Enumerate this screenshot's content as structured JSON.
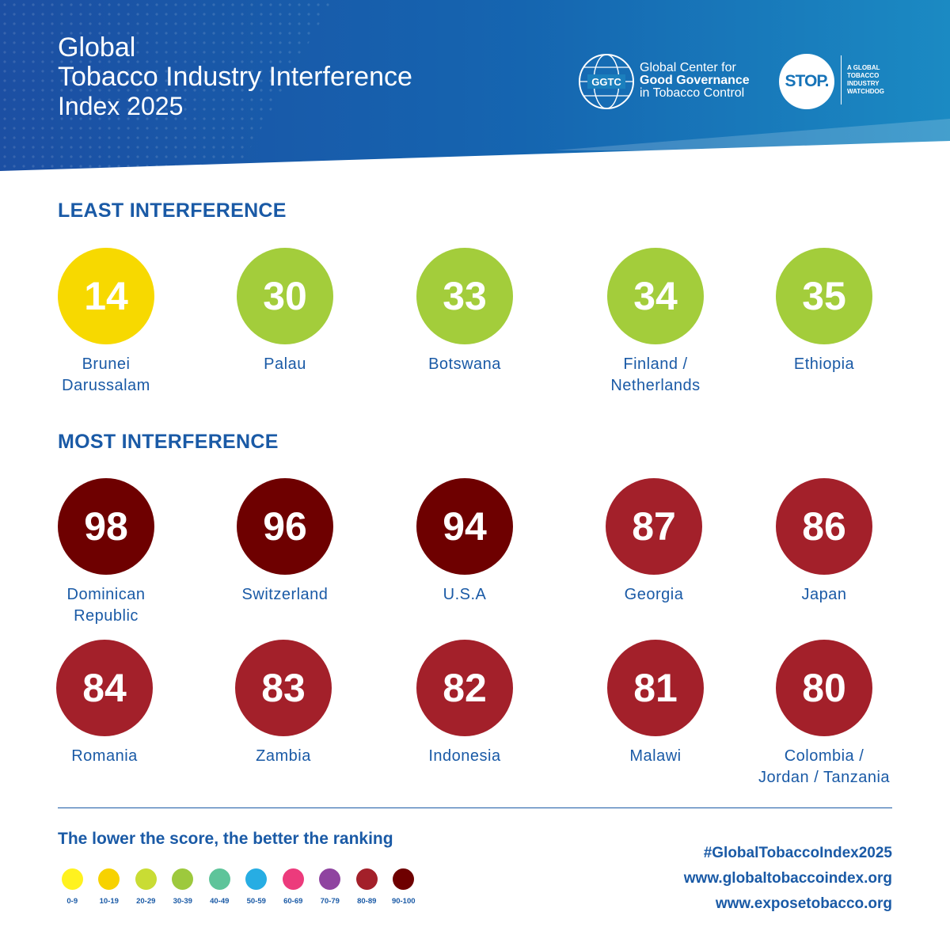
{
  "header": {
    "title_line1": "Global",
    "title_line2": "Tobacco Industry Interference",
    "title_line3": "Index 2025",
    "ggtc_abbr": "GGTC",
    "ggtc_line1": "Global Center for",
    "ggtc_line2": "Good Governance",
    "ggtc_line3": "in Tobacco Control",
    "stop_logo": "STOP.",
    "stop_tag1": "A GLOBAL",
    "stop_tag2": "TOBACCO",
    "stop_tag3": "INDUSTRY",
    "stop_tag4": "WATCHDOG"
  },
  "least": {
    "title": "LEAST INTERFERENCE",
    "items": [
      {
        "score": "14",
        "country": "Brunei\nDarussalam",
        "color": "#f7d900"
      },
      {
        "score": "30",
        "country": "Palau",
        "color": "#a3cd3b"
      },
      {
        "score": "33",
        "country": "Botswana",
        "color": "#a3cd3b"
      },
      {
        "score": "34",
        "country": "Finland /\nNetherlands",
        "color": "#a3cd3b"
      },
      {
        "score": "35",
        "country": "Ethiopia",
        "color": "#a3cd3b"
      }
    ]
  },
  "most": {
    "title": "MOST INTERFERENCE",
    "items": [
      {
        "score": "98",
        "country": "Dominican\nRepublic",
        "color": "#6e0000"
      },
      {
        "score": "96",
        "country": "Switzerland",
        "color": "#6e0000"
      },
      {
        "score": "94",
        "country": "U.S.A",
        "color": "#6e0000"
      },
      {
        "score": "87",
        "country": "Georgia",
        "color": "#a3202a"
      },
      {
        "score": "86",
        "country": "Japan",
        "color": "#a3202a"
      },
      {
        "score": "84",
        "country": "Romania",
        "color": "#a3202a"
      },
      {
        "score": "83",
        "country": "Zambia",
        "color": "#a3202a"
      },
      {
        "score": "82",
        "country": "Indonesia",
        "color": "#a3202a"
      },
      {
        "score": "81",
        "country": "Malawi",
        "color": "#a3202a"
      },
      {
        "score": "80",
        "country": "Colombia /\nJordan / Tanzania",
        "color": "#a3202a"
      }
    ]
  },
  "legend": {
    "title": "The lower the score, the better the ranking",
    "items": [
      {
        "label": "0-9",
        "color": "#fff21f"
      },
      {
        "label": "10-19",
        "color": "#f7d200"
      },
      {
        "label": "20-29",
        "color": "#c9dc34"
      },
      {
        "label": "30-39",
        "color": "#9dc93d"
      },
      {
        "label": "40-49",
        "color": "#5ec49a"
      },
      {
        "label": "50-59",
        "color": "#27ade3"
      },
      {
        "label": "60-69",
        "color": "#ec3b7c"
      },
      {
        "label": "70-79",
        "color": "#8f44a0"
      },
      {
        "label": "80-89",
        "color": "#a3202a"
      },
      {
        "label": "90-100",
        "color": "#6e0000"
      }
    ]
  },
  "footer": {
    "hashtag": "#GlobalTobaccoIndex2025",
    "link1": "www.globaltobaccoindex.org",
    "link2": "www.exposetobacco.org"
  }
}
